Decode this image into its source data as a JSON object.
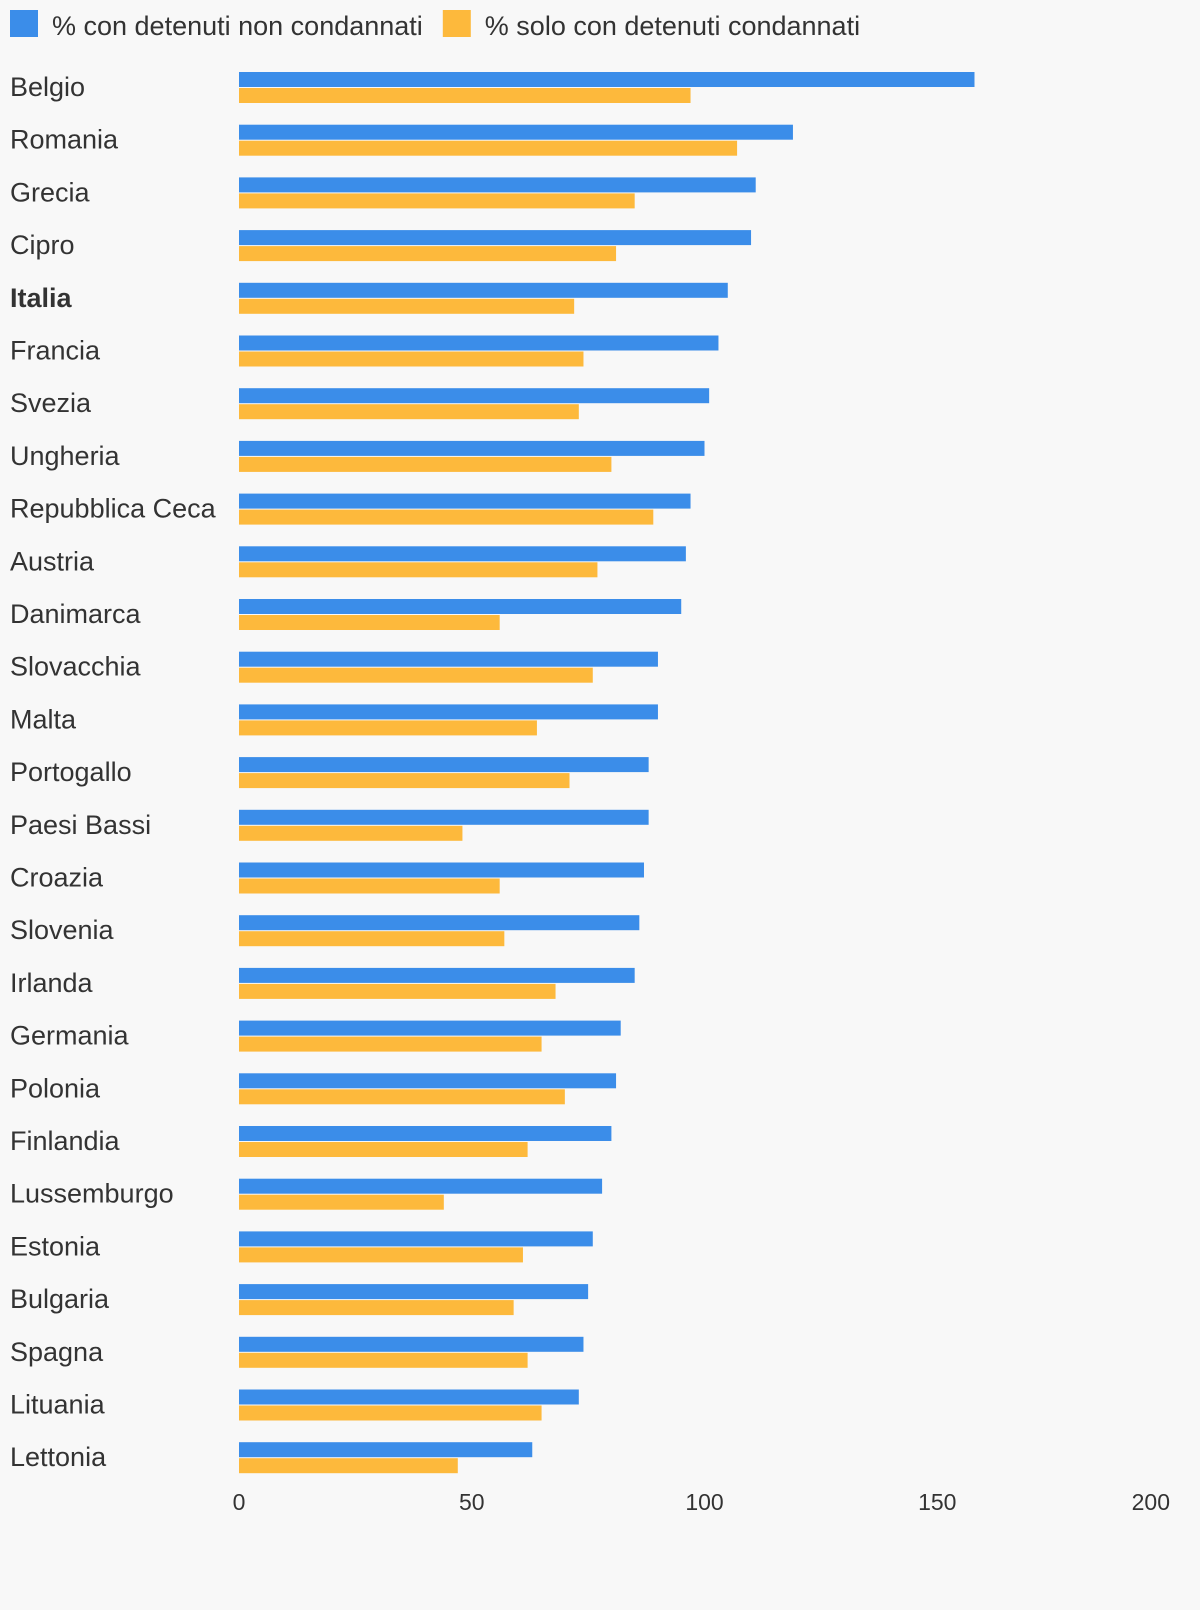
{
  "chart_data": {
    "type": "bar",
    "orientation": "horizontal",
    "categories": [
      "Belgio",
      "Romania",
      "Grecia",
      "Cipro",
      "Italia",
      "Francia",
      "Svezia",
      "Ungheria",
      "Repubblica Ceca",
      "Austria",
      "Danimarca",
      "Slovacchia",
      "Malta",
      "Portogallo",
      "Paesi Bassi",
      "Croazia",
      "Slovenia",
      "Irlanda",
      "Germania",
      "Polonia",
      "Finlandia",
      "Lussemburgo",
      "Estonia",
      "Bulgaria",
      "Spagna",
      "Lituania",
      "Lettonia"
    ],
    "highlighted_category": "Italia",
    "series": [
      {
        "name": "% con detenuti non condannati",
        "color": "#3b8de9",
        "values": [
          158,
          119,
          111,
          110,
          105,
          103,
          101,
          100,
          97,
          96,
          95,
          90,
          90,
          88,
          88,
          87,
          86,
          85,
          82,
          81,
          80,
          78,
          76,
          75,
          74,
          73,
          63
        ]
      },
      {
        "name": "% solo con detenuti condannati",
        "color": "#fdb93c",
        "values": [
          97,
          107,
          85,
          81,
          72,
          74,
          73,
          80,
          89,
          77,
          56,
          76,
          64,
          71,
          48,
          56,
          57,
          68,
          65,
          70,
          62,
          44,
          61,
          59,
          62,
          65,
          47
        ]
      }
    ],
    "x_ticks": [
      "0",
      "50",
      "100",
      "150",
      "200"
    ],
    "xlim": [
      0,
      200
    ],
    "legend_position": "top-left",
    "grid": false
  }
}
